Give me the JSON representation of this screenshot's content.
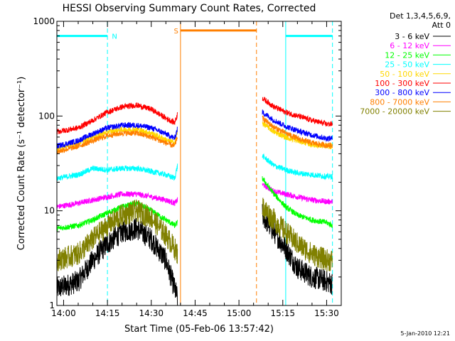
{
  "chart_data": {
    "type": "line",
    "title": "HESSI Observing Summary Count Rates, Corrected",
    "xlabel": "Start Time (05-Feb-06 13:57:42)",
    "ylabel": "Corrected Count Rate (s⁻¹ detector⁻¹)",
    "yscale": "log",
    "ylim": [
      1,
      1000
    ],
    "xlim": [
      "13:57:42",
      "15:35:00"
    ],
    "x_ticks": [
      "14:00",
      "14:15",
      "14:30",
      "14:45",
      "15:00",
      "15:15",
      "15:30"
    ],
    "y_ticks": [
      "1",
      "10",
      "100",
      "1000"
    ],
    "timestamp": "5-Jan-2010 12:21",
    "legend": {
      "position": "right",
      "header": [
        "Det 1,3,4,5,6,9,",
        "Att 0"
      ],
      "entries": [
        {
          "label": "3 - 6 keV",
          "color": "#000000"
        },
        {
          "label": "6 - 12 keV",
          "color": "#ff00ff"
        },
        {
          "label": "12 - 25 keV",
          "color": "#00ff00"
        },
        {
          "label": "25 - 50 keV",
          "color": "#00ffff"
        },
        {
          "label": "50 - 100 keV",
          "color": "#ffd700"
        },
        {
          "label": "100 - 300 keV",
          "color": "#ff0000"
        },
        {
          "label": "300 - 800 keV",
          "color": "#0000ff"
        },
        {
          "label": "800 - 7000 keV",
          "color": "#ff7f00"
        },
        {
          "label": "7000 - 20000 keV",
          "color": "#808000"
        }
      ]
    },
    "flags": [
      {
        "label": "N",
        "color": "#00ffff",
        "y": 700,
        "from": "13:57:42",
        "to": "14:15",
        "style": "bar"
      },
      {
        "label": "",
        "color": "#00ffff",
        "y": 700,
        "from": "15:16",
        "to": "15:32",
        "style": "bar"
      },
      {
        "label": "S",
        "color": "#ff7f00",
        "y": 800,
        "from": "14:40",
        "to": "15:06",
        "style": "bar"
      }
    ],
    "vlines": [
      {
        "x": "14:15",
        "color": "#00ffff",
        "style": "dashed"
      },
      {
        "x": "14:40",
        "color": "#ff7f00",
        "style": "solid"
      },
      {
        "x": "15:06",
        "color": "#ff7f00",
        "style": "dashed"
      },
      {
        "x": "15:16",
        "color": "#00ffff",
        "style": "solid"
      },
      {
        "x": "15:32",
        "color": "#00ffff",
        "style": "dashed"
      }
    ],
    "series": [
      {
        "name": "3 - 6 keV",
        "color": "#000000",
        "seg1": [
          [
            "13:57:42",
            1.5
          ],
          [
            "14:05",
            1.8
          ],
          [
            "14:10",
            3.0
          ],
          [
            "14:15",
            4.5
          ],
          [
            "14:20",
            6.0
          ],
          [
            "14:25",
            6.5
          ],
          [
            "14:30",
            5.0
          ],
          [
            "14:35",
            3.0
          ],
          [
            "14:38",
            1.5
          ],
          [
            "14:39",
            1.2
          ]
        ],
        "seg2": [
          [
            "15:08",
            9.0
          ],
          [
            "15:12",
            6.0
          ],
          [
            "15:16",
            4.0
          ],
          [
            "15:20",
            2.5
          ],
          [
            "15:25",
            2.0
          ],
          [
            "15:30",
            1.8
          ],
          [
            "15:32",
            1.7
          ]
        ]
      },
      {
        "name": "6 - 12 keV",
        "color": "#ff00ff",
        "seg1": [
          [
            "13:57:42",
            11
          ],
          [
            "14:05",
            12
          ],
          [
            "14:10",
            13
          ],
          [
            "14:15",
            14
          ],
          [
            "14:20",
            15
          ],
          [
            "14:25",
            15
          ],
          [
            "14:30",
            14
          ],
          [
            "14:35",
            13
          ],
          [
            "14:38",
            12
          ],
          [
            "14:39",
            13
          ]
        ],
        "seg2": [
          [
            "15:08",
            19
          ],
          [
            "15:12",
            16
          ],
          [
            "15:16",
            15
          ],
          [
            "15:20",
            14
          ],
          [
            "15:25",
            13
          ],
          [
            "15:30",
            12.5
          ],
          [
            "15:32",
            12.5
          ]
        ]
      },
      {
        "name": "12 - 25 keV",
        "color": "#00ff00",
        "seg1": [
          [
            "13:57:42",
            6.5
          ],
          [
            "14:05",
            7.0
          ],
          [
            "14:10",
            8.0
          ],
          [
            "14:15",
            9.5
          ],
          [
            "14:20",
            11
          ],
          [
            "14:25",
            12
          ],
          [
            "14:30",
            10
          ],
          [
            "14:35",
            8.0
          ],
          [
            "14:38",
            7.0
          ],
          [
            "14:39",
            7.5
          ]
        ],
        "seg2": [
          [
            "15:08",
            22
          ],
          [
            "15:12",
            15
          ],
          [
            "15:16",
            11
          ],
          [
            "15:20",
            9.0
          ],
          [
            "15:25",
            8.0
          ],
          [
            "15:30",
            7.5
          ],
          [
            "15:32",
            7.0
          ]
        ]
      },
      {
        "name": "25 - 50 keV",
        "color": "#00ffff",
        "seg1": [
          [
            "13:57:42",
            22
          ],
          [
            "14:05",
            24
          ],
          [
            "14:10",
            28
          ],
          [
            "14:15",
            27
          ],
          [
            "14:20",
            28
          ],
          [
            "14:25",
            28
          ],
          [
            "14:30",
            26
          ],
          [
            "14:35",
            24
          ],
          [
            "14:38",
            22
          ],
          [
            "14:39",
            30
          ]
        ],
        "seg2": [
          [
            "15:08",
            38
          ],
          [
            "15:12",
            30
          ],
          [
            "15:16",
            27
          ],
          [
            "15:20",
            25
          ],
          [
            "15:25",
            24
          ],
          [
            "15:30",
            23
          ],
          [
            "15:32",
            23
          ]
        ]
      },
      {
        "name": "50 - 100 keV",
        "color": "#ffd700",
        "seg1": [
          [
            "13:57:42",
            45
          ],
          [
            "14:05",
            52
          ],
          [
            "14:10",
            60
          ],
          [
            "14:15",
            68
          ],
          [
            "14:20",
            72
          ],
          [
            "14:25",
            72
          ],
          [
            "14:30",
            66
          ],
          [
            "14:35",
            56
          ],
          [
            "14:38",
            52
          ],
          [
            "14:39",
            70
          ]
        ],
        "seg2": [
          [
            "15:08",
            85
          ],
          [
            "15:12",
            68
          ],
          [
            "15:16",
            60
          ],
          [
            "15:20",
            55
          ],
          [
            "15:25",
            50
          ],
          [
            "15:30",
            48
          ],
          [
            "15:32",
            48
          ]
        ]
      },
      {
        "name": "100 - 300 keV",
        "color": "#ff0000",
        "seg1": [
          [
            "13:57:42",
            68
          ],
          [
            "14:05",
            75
          ],
          [
            "14:10",
            90
          ],
          [
            "14:15",
            110
          ],
          [
            "14:20",
            125
          ],
          [
            "14:25",
            130
          ],
          [
            "14:30",
            118
          ],
          [
            "14:35",
            95
          ],
          [
            "14:38",
            85
          ],
          [
            "14:39",
            105
          ]
        ],
        "seg2": [
          [
            "15:08",
            155
          ],
          [
            "15:12",
            125
          ],
          [
            "15:16",
            110
          ],
          [
            "15:20",
            100
          ],
          [
            "15:25",
            90
          ],
          [
            "15:30",
            82
          ],
          [
            "15:32",
            82
          ]
        ]
      },
      {
        "name": "300 - 800 keV",
        "color": "#0000ff",
        "seg1": [
          [
            "13:57:42",
            48
          ],
          [
            "14:05",
            55
          ],
          [
            "14:10",
            65
          ],
          [
            "14:15",
            75
          ],
          [
            "14:20",
            80
          ],
          [
            "14:25",
            80
          ],
          [
            "14:30",
            75
          ],
          [
            "14:35",
            65
          ],
          [
            "14:38",
            58
          ],
          [
            "14:39",
            75
          ]
        ],
        "seg2": [
          [
            "15:08",
            110
          ],
          [
            "15:12",
            90
          ],
          [
            "15:16",
            78
          ],
          [
            "15:20",
            70
          ],
          [
            "15:25",
            63
          ],
          [
            "15:30",
            58
          ],
          [
            "15:32",
            58
          ]
        ]
      },
      {
        "name": "800 - 7000 keV",
        "color": "#ff7f00",
        "seg1": [
          [
            "13:57:42",
            42
          ],
          [
            "14:05",
            48
          ],
          [
            "14:10",
            55
          ],
          [
            "14:15",
            62
          ],
          [
            "14:20",
            66
          ],
          [
            "14:25",
            66
          ],
          [
            "14:30",
            60
          ],
          [
            "14:35",
            52
          ],
          [
            "14:38",
            48
          ],
          [
            "14:39",
            62
          ]
        ],
        "seg2": [
          [
            "15:08",
            95
          ],
          [
            "15:12",
            76
          ],
          [
            "15:16",
            66
          ],
          [
            "15:20",
            58
          ],
          [
            "15:25",
            52
          ],
          [
            "15:30",
            49
          ],
          [
            "15:32",
            49
          ]
        ]
      },
      {
        "name": "7000 - 20000 keV",
        "color": "#808000",
        "seg1": [
          [
            "13:57:42",
            3.0
          ],
          [
            "14:05",
            3.5
          ],
          [
            "14:10",
            5.0
          ],
          [
            "14:15",
            7.0
          ],
          [
            "14:20",
            9.0
          ],
          [
            "14:25",
            10
          ],
          [
            "14:30",
            8.5
          ],
          [
            "14:35",
            5.5
          ],
          [
            "14:38",
            4.0
          ],
          [
            "14:39",
            3.5
          ]
        ],
        "seg2": [
          [
            "15:08",
            11
          ],
          [
            "15:12",
            8.0
          ],
          [
            "15:16",
            6.0
          ],
          [
            "15:20",
            4.5
          ],
          [
            "15:25",
            3.5
          ],
          [
            "15:30",
            3.0
          ],
          [
            "15:32",
            3.0
          ]
        ]
      }
    ]
  }
}
